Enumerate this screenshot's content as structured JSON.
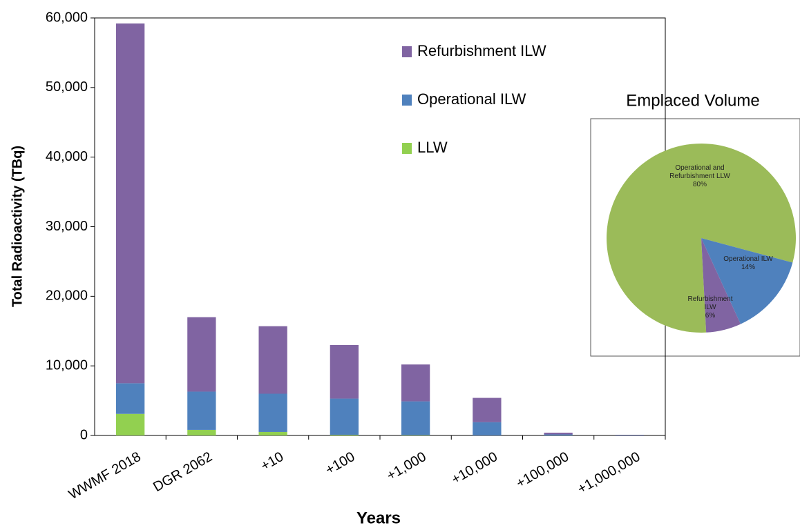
{
  "chart_data": [
    {
      "type": "stacked_bar",
      "xlabel": "Years",
      "ylabel": "Total Radioactivity  (TBq)",
      "categories": [
        "WWMF 2018",
        "DGR 2062",
        "+10",
        "+100",
        "+1,000",
        "+10,000",
        "+100,000",
        "+1,000,000"
      ],
      "series": [
        {
          "name": "LLW",
          "color": "#92d050",
          "values": [
            3100,
            800,
            500,
            100,
            50,
            0,
            0,
            0
          ]
        },
        {
          "name": "Operational ILW",
          "color": "#4f81bd",
          "values": [
            4400,
            5500,
            5500,
            5200,
            4850,
            1900,
            150,
            50
          ]
        },
        {
          "name": "Refurbishment  ILW",
          "color": "#8064a2",
          "values": [
            51700,
            10700,
            9700,
            7700,
            5300,
            3500,
            250,
            50
          ]
        }
      ],
      "ylim": [
        0,
        60000
      ],
      "yticks": [
        0,
        {
          "value": 10000,
          "label": "10,000"
        },
        {
          "value": 20000,
          "label": "20,000"
        },
        {
          "value": 30000,
          "label": "30,000"
        },
        {
          "value": 40000,
          "label": "40,000"
        },
        {
          "value": 50000,
          "label": "50,000"
        },
        {
          "value": 60000,
          "label": "60,000"
        }
      ]
    },
    {
      "type": "pie",
      "title": "Emplaced Volume",
      "categories": [
        "Operational and Refurbishment LLW",
        "Operational ILW",
        "Refurbishment ILW"
      ],
      "values": [
        80,
        14,
        6
      ],
      "value_labels": [
        "80%",
        "14%",
        "6%"
      ],
      "colors": [
        "#9bbb59",
        "#4f81bd",
        "#8064a2"
      ]
    }
  ]
}
